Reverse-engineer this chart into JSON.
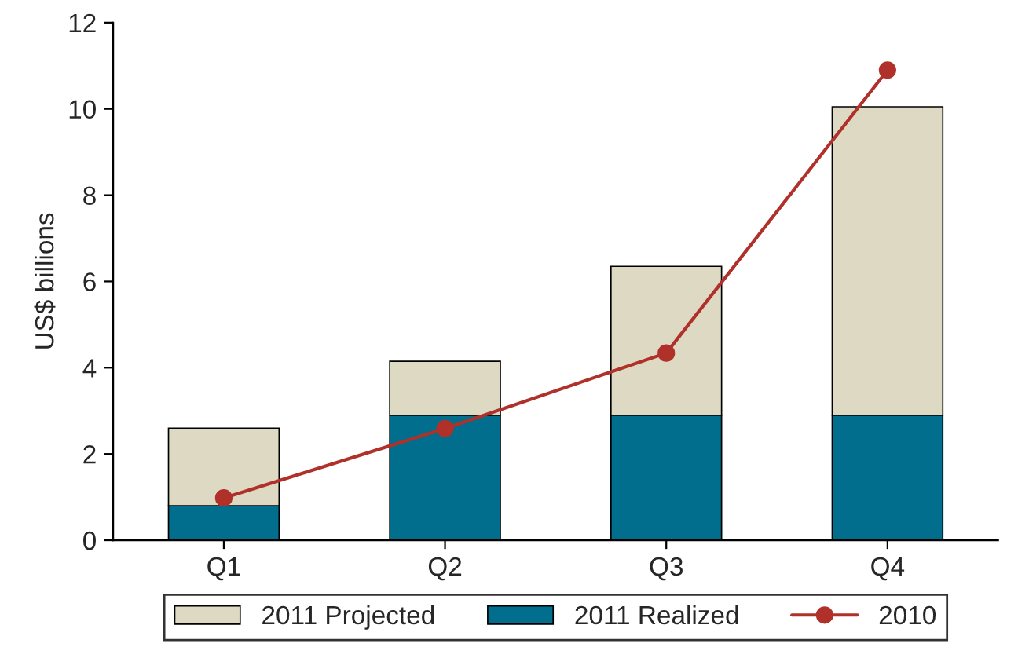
{
  "chart_data": {
    "type": "bar",
    "stacked": true,
    "ylabel": "US$ billions",
    "categories": [
      "Q1",
      "Q2",
      "Q3",
      "Q4"
    ],
    "series": [
      {
        "name": "2011 Realized",
        "color": "#006e8c",
        "values": [
          0.8,
          2.9,
          2.9,
          2.9
        ]
      },
      {
        "name": "2011 Projected",
        "color": "#ddd9c3",
        "values": [
          1.8,
          1.25,
          3.45,
          7.15
        ]
      },
      {
        "name": "2010",
        "type": "line",
        "color": "#b0302a",
        "marker": "circle",
        "line_style": "solid",
        "values": [
          0.98,
          2.59,
          4.34,
          10.9
        ]
      }
    ],
    "ylim": [
      0,
      12
    ],
    "yticks": [
      0,
      2,
      4,
      6,
      8,
      10,
      12
    ],
    "grid": false,
    "legend": "bottom"
  }
}
